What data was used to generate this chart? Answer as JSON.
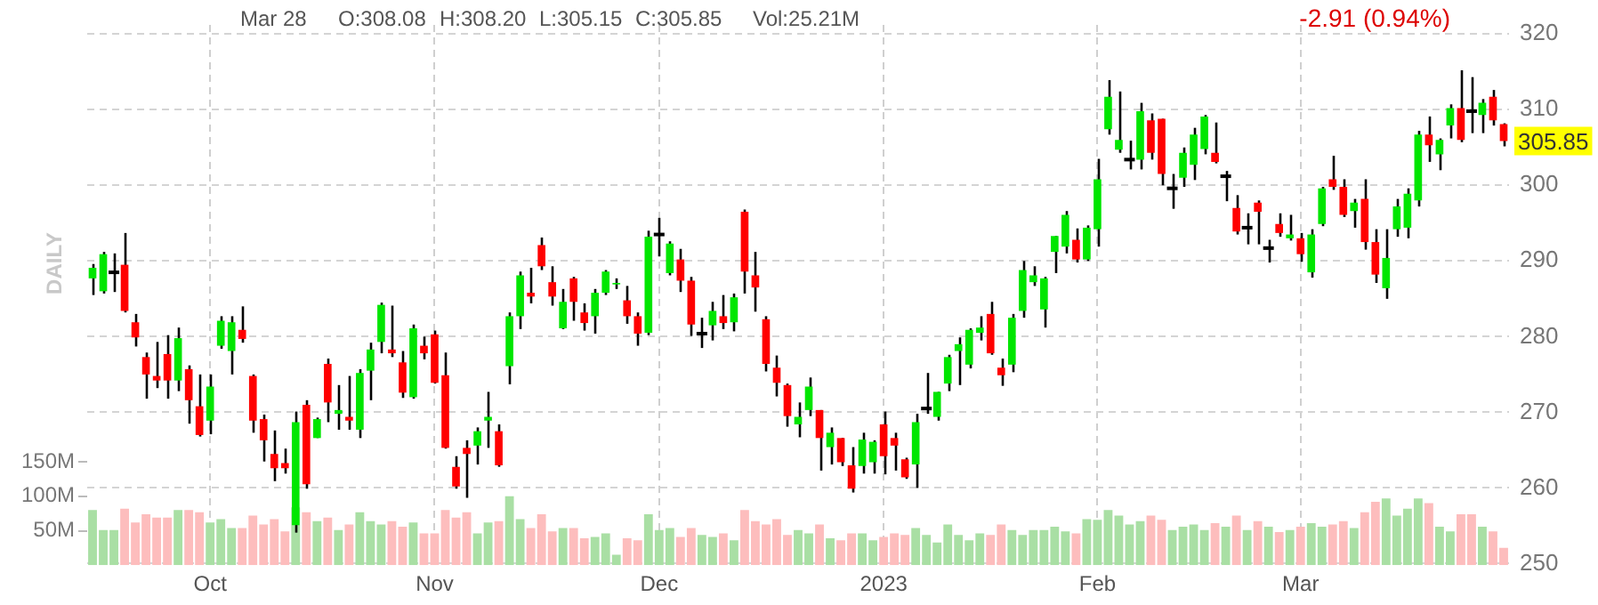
{
  "chart_data": {
    "type": "candlestick",
    "y2label": "DAILY",
    "annotations": [
      "Mar 28",
      "O:308.08",
      "H:308.20",
      "L:305.15",
      "C:305.85",
      "Vol:25.21M",
      "-2.91 (0.94%)",
      "305.85"
    ],
    "categories": [
      null,
      null,
      null,
      null,
      null,
      null,
      null,
      null,
      null,
      null,
      null,
      "Oct",
      null,
      null,
      null,
      null,
      null,
      null,
      null,
      null,
      null,
      null,
      null,
      null,
      null,
      null,
      null,
      null,
      null,
      null,
      null,
      null,
      "Nov",
      null,
      null,
      null,
      null,
      null,
      null,
      null,
      null,
      null,
      null,
      null,
      null,
      null,
      null,
      null,
      null,
      null,
      null,
      null,
      null,
      "Dec",
      null,
      null,
      null,
      null,
      null,
      null,
      null,
      null,
      null,
      null,
      null,
      null,
      null,
      null,
      null,
      null,
      null,
      null,
      null,
      null,
      "2023",
      null,
      null,
      null,
      null,
      null,
      null,
      null,
      null,
      null,
      null,
      null,
      null,
      null,
      null,
      null,
      null,
      null,
      null,
      null,
      "Feb",
      null,
      null,
      null,
      null,
      null,
      null,
      null,
      null,
      null,
      null,
      null,
      null,
      null,
      null,
      null,
      null,
      null,
      null,
      "Mar",
      null,
      null,
      null,
      null,
      null,
      null,
      null,
      null,
      null,
      null,
      null,
      null,
      null,
      null,
      null,
      null,
      null,
      null,
      null
    ],
    "ohlc": [
      [
        287.7,
        289.6,
        285.5,
        289.1
      ],
      [
        286.0,
        291.2,
        285.7,
        290.9
      ],
      [
        288.5,
        291.0,
        285.9,
        288.5
      ],
      [
        289.5,
        293.7,
        283.2,
        283.4
      ],
      [
        281.9,
        283.0,
        278.7,
        279.9
      ],
      [
        277.3,
        277.9,
        271.8,
        275.0
      ],
      [
        274.8,
        279.3,
        273.2,
        274.2
      ],
      [
        277.7,
        280.2,
        271.8,
        274.2
      ],
      [
        274.2,
        281.2,
        272.8,
        279.8
      ],
      [
        275.7,
        276.2,
        268.5,
        271.6
      ],
      [
        270.8,
        275.0,
        266.8,
        267.0
      ],
      [
        268.9,
        275.0,
        267.1,
        273.4
      ],
      [
        278.8,
        282.7,
        278.4,
        282.1
      ],
      [
        278.1,
        282.7,
        275.0,
        281.9
      ],
      [
        280.9,
        284.0,
        279.2,
        279.7
      ],
      [
        274.8,
        275.0,
        267.3,
        268.9
      ],
      [
        269.1,
        269.7,
        263.5,
        266.3
      ],
      [
        264.5,
        267.6,
        260.9,
        262.6
      ],
      [
        263.3,
        265.2,
        261.9,
        262.6
      ],
      [
        255.1,
        270.1,
        254.1,
        268.7
      ],
      [
        271.0,
        271.6,
        259.9,
        260.5
      ],
      [
        266.6,
        269.3,
        266.6,
        269.1
      ],
      [
        276.4,
        277.1,
        268.7,
        271.3
      ],
      [
        269.8,
        273.6,
        267.7,
        270.3
      ],
      [
        269.4,
        274.8,
        267.7,
        268.9
      ],
      [
        267.7,
        275.7,
        266.6,
        275.2
      ],
      [
        275.5,
        279.2,
        271.6,
        278.3
      ],
      [
        279.3,
        284.5,
        277.8,
        284.2
      ],
      [
        278.3,
        284.1,
        277.3,
        277.8
      ],
      [
        276.6,
        278.1,
        271.9,
        272.6
      ],
      [
        272.0,
        281.6,
        271.8,
        281.1
      ],
      [
        278.8,
        280.0,
        277.0,
        277.8
      ],
      [
        280.3,
        280.8,
        273.8,
        273.9
      ],
      [
        274.9,
        277.9,
        265.2,
        265.3
      ],
      [
        262.8,
        264.2,
        259.9,
        260.2
      ],
      [
        265.3,
        266.3,
        258.7,
        264.5
      ],
      [
        265.6,
        268.0,
        263.1,
        267.5
      ],
      [
        268.9,
        272.7,
        265.3,
        269.4
      ],
      [
        267.5,
        268.4,
        262.8,
        263.0
      ],
      [
        276.1,
        283.2,
        273.7,
        282.7
      ],
      [
        282.7,
        288.6,
        281.0,
        288.1
      ],
      [
        285.8,
        289.1,
        284.4,
        285.3
      ],
      [
        292.1,
        293.1,
        288.8,
        289.3
      ],
      [
        287.2,
        289.3,
        284.1,
        285.3
      ],
      [
        281.1,
        286.3,
        281.0,
        284.6
      ],
      [
        287.7,
        287.9,
        282.1,
        284.6
      ],
      [
        283.2,
        284.4,
        280.8,
        281.8
      ],
      [
        282.7,
        286.3,
        280.4,
        285.8
      ],
      [
        285.8,
        288.8,
        285.5,
        288.6
      ],
      [
        286.9,
        287.7,
        286.3,
        287.1
      ],
      [
        284.8,
        286.7,
        281.7,
        282.7
      ],
      [
        282.7,
        283.2,
        278.8,
        280.4
      ],
      [
        280.5,
        294.0,
        280.2,
        293.2
      ],
      [
        293.5,
        295.7,
        290.6,
        293.5
      ],
      [
        288.4,
        292.6,
        288.1,
        292.3
      ],
      [
        290.2,
        291.6,
        285.9,
        287.4
      ],
      [
        287.4,
        287.9,
        280.1,
        281.6
      ],
      [
        280.4,
        282.5,
        278.5,
        280.4
      ],
      [
        281.5,
        284.6,
        279.5,
        283.4
      ],
      [
        282.7,
        285.5,
        281.0,
        281.8
      ],
      [
        281.9,
        285.7,
        280.7,
        285.2
      ],
      [
        296.5,
        296.8,
        285.7,
        288.6
      ],
      [
        288.1,
        291.2,
        283.3,
        286.5
      ],
      [
        282.3,
        282.7,
        275.4,
        276.4
      ],
      [
        275.9,
        277.5,
        272.1,
        273.9
      ],
      [
        273.6,
        273.8,
        268.1,
        269.5
      ],
      [
        268.4,
        271.3,
        266.7,
        269.4
      ],
      [
        270.3,
        274.6,
        269.5,
        273.4
      ],
      [
        270.3,
        270.3,
        262.3,
        266.6
      ],
      [
        265.4,
        268.0,
        263.1,
        267.3
      ],
      [
        266.6,
        266.6,
        262.9,
        263.4
      ],
      [
        263.0,
        265.4,
        259.4,
        259.9
      ],
      [
        262.9,
        267.3,
        261.9,
        266.4
      ],
      [
        263.4,
        266.3,
        261.9,
        266.1
      ],
      [
        268.4,
        270.1,
        261.8,
        264.2
      ],
      [
        266.6,
        267.3,
        262.3,
        265.6
      ],
      [
        263.8,
        264.0,
        261.2,
        261.4
      ],
      [
        263.1,
        269.8,
        260.0,
        268.7
      ],
      [
        270.5,
        275.2,
        269.8,
        270.5
      ],
      [
        269.4,
        272.7,
        268.9,
        272.7
      ],
      [
        273.8,
        277.6,
        272.8,
        277.3
      ],
      [
        278.1,
        279.9,
        273.6,
        279.0
      ],
      [
        276.3,
        281.1,
        275.8,
        280.9
      ],
      [
        280.5,
        282.7,
        279.5,
        281.2
      ],
      [
        283.0,
        284.6,
        277.6,
        277.8
      ],
      [
        275.9,
        277.1,
        273.5,
        274.9
      ],
      [
        276.3,
        283.0,
        275.3,
        282.5
      ],
      [
        283.4,
        290.0,
        282.5,
        288.8
      ],
      [
        287.2,
        289.3,
        286.7,
        288.1
      ],
      [
        283.6,
        287.9,
        281.2,
        287.7
      ],
      [
        291.2,
        293.3,
        288.4,
        293.3
      ],
      [
        291.9,
        296.6,
        291.0,
        296.1
      ],
      [
        292.8,
        294.3,
        289.8,
        290.2
      ],
      [
        290.2,
        294.7,
        290.0,
        294.4
      ],
      [
        294.2,
        303.5,
        291.9,
        300.8
      ],
      [
        307.4,
        313.9,
        306.7,
        311.7
      ],
      [
        304.7,
        312.4,
        304.3,
        306.0
      ],
      [
        303.4,
        305.9,
        302.1,
        303.4
      ],
      [
        303.4,
        310.9,
        302.1,
        309.8
      ],
      [
        308.6,
        309.5,
        303.4,
        304.3
      ],
      [
        308.8,
        308.8,
        300.0,
        301.5
      ],
      [
        299.6,
        301.5,
        296.9,
        299.6
      ],
      [
        301.0,
        305.0,
        299.8,
        304.3
      ],
      [
        302.7,
        307.6,
        300.7,
        306.7
      ],
      [
        304.8,
        309.3,
        304.1,
        309.1
      ],
      [
        304.3,
        308.3,
        302.9,
        303.1
      ],
      [
        301.2,
        301.9,
        297.9,
        301.2
      ],
      [
        297.0,
        298.7,
        293.5,
        293.9
      ],
      [
        294.4,
        296.3,
        292.2,
        294.4
      ],
      [
        297.7,
        298.0,
        292.2,
        296.5
      ],
      [
        291.7,
        292.8,
        289.8,
        291.7
      ],
      [
        294.9,
        296.3,
        293.2,
        293.7
      ],
      [
        293.0,
        296.1,
        292.7,
        293.5
      ],
      [
        293.0,
        293.7,
        289.9,
        290.9
      ],
      [
        288.5,
        294.2,
        287.8,
        293.5
      ],
      [
        294.9,
        299.8,
        294.6,
        299.6
      ],
      [
        300.8,
        303.9,
        299.4,
        299.8
      ],
      [
        299.8,
        300.8,
        295.8,
        296.1
      ],
      [
        296.6,
        298.2,
        294.4,
        297.7
      ],
      [
        298.2,
        300.8,
        291.5,
        292.5
      ],
      [
        292.5,
        294.2,
        287.1,
        288.2
      ],
      [
        286.4,
        294.2,
        285.0,
        290.4
      ],
      [
        294.2,
        298.2,
        293.2,
        297.2
      ],
      [
        294.4,
        299.6,
        293.0,
        298.9
      ],
      [
        298.0,
        307.2,
        297.2,
        306.7
      ],
      [
        306.7,
        309.1,
        303.1,
        305.3
      ],
      [
        304.1,
        306.2,
        302.0,
        306.0
      ],
      [
        307.9,
        310.7,
        306.2,
        310.2
      ],
      [
        310.2,
        315.2,
        305.7,
        306.0
      ],
      [
        309.8,
        314.3,
        306.9,
        309.8
      ],
      [
        309.3,
        311.4,
        306.9,
        310.9
      ],
      [
        311.7,
        312.6,
        307.9,
        308.6
      ],
      [
        308.08,
        308.2,
        305.15,
        305.85
      ]
    ],
    "colors": [
      "#00e600",
      "#00e600",
      "#000000",
      "#ff0000",
      "#ff0000",
      "#ff0000",
      "#ff0000",
      "#ff0000",
      "#00e600",
      "#ff0000",
      "#ff0000",
      "#00e600",
      "#00e600",
      "#00e600",
      "#ff0000",
      "#ff0000",
      "#ff0000",
      "#ff0000",
      "#ff0000",
      "#00e600",
      "#ff0000",
      "#00e600",
      "#ff0000",
      "#00e600",
      "#ff0000",
      "#00e600",
      "#00e600",
      "#00e600",
      "#ff0000",
      "#ff0000",
      "#00e600",
      "#ff0000",
      "#ff0000",
      "#ff0000",
      "#ff0000",
      "#ff0000",
      "#00e600",
      "#00e600",
      "#ff0000",
      "#00e600",
      "#00e600",
      "#ff0000",
      "#ff0000",
      "#ff0000",
      "#00e600",
      "#ff0000",
      "#ff0000",
      "#00e600",
      "#00e600",
      "#00e600",
      "#ff0000",
      "#ff0000",
      "#00e600",
      "#000000",
      "#00e600",
      "#ff0000",
      "#ff0000",
      "#000000",
      "#00e600",
      "#ff0000",
      "#00e600",
      "#ff0000",
      "#ff0000",
      "#ff0000",
      "#ff0000",
      "#ff0000",
      "#00e600",
      "#00e600",
      "#ff0000",
      "#00e600",
      "#ff0000",
      "#ff0000",
      "#00e600",
      "#00e600",
      "#ff0000",
      "#ff0000",
      "#ff0000",
      "#00e600",
      "#000000",
      "#00e600",
      "#00e600",
      "#00e600",
      "#00e600",
      "#00e600",
      "#ff0000",
      "#ff0000",
      "#00e600",
      "#00e600",
      "#00e600",
      "#00e600",
      "#00e600",
      "#00e600",
      "#ff0000",
      "#00e600",
      "#00e600",
      "#00e600",
      "#00e600",
      "#000000",
      "#00e600",
      "#ff0000",
      "#ff0000",
      "#000000",
      "#00e600",
      "#00e600",
      "#00e600",
      "#ff0000",
      "#000000",
      "#ff0000",
      "#000000",
      "#ff0000",
      "#000000",
      "#ff0000",
      "#00e600",
      "#ff0000",
      "#00e600",
      "#00e600",
      "#ff0000",
      "#ff0000",
      "#00e600",
      "#ff0000",
      "#ff0000",
      "#00e600",
      "#00e600",
      "#00e600",
      "#00e600",
      "#ff0000",
      "#00e600",
      "#00e600",
      "#ff0000",
      "#000000",
      "#00e600",
      "#ff0000",
      "#ff0000"
    ],
    "ylim": [
      249.8,
      321.2
    ],
    "yticks": [
      250,
      260,
      270,
      280,
      290,
      300,
      310,
      320
    ],
    "y2lim": [
      0,
      785
    ],
    "y2ticks": [
      {
        "value": 50,
        "label": "50M"
      },
      {
        "value": 100,
        "label": "100M"
      },
      {
        "value": 150,
        "label": "150M"
      }
    ],
    "grid": true,
    "series": [
      {
        "type": "bar",
        "axis": "y2",
        "values": [
          80,
          51,
          51,
          82,
          62,
          74,
          69,
          69,
          80,
          80,
          77,
          62,
          67,
          54,
          54,
          72,
          59,
          67,
          49,
          84,
          77,
          64,
          69,
          51,
          59,
          77,
          64,
          59,
          64,
          56,
          62,
          46,
          46,
          80,
          69,
          77,
          46,
          62,
          64,
          100,
          67,
          54,
          74,
          49,
          54,
          54,
          39,
          41,
          46,
          15,
          39,
          36,
          74,
          51,
          54,
          41,
          54,
          44,
          41,
          46,
          36,
          80,
          64,
          59,
          67,
          44,
          51,
          46,
          59,
          39,
          36,
          46,
          46,
          36,
          41,
          46,
          44,
          54,
          44,
          33,
          59,
          44,
          36,
          46,
          44,
          59,
          51,
          44,
          51,
          51,
          56,
          49,
          46,
          67,
          66,
          80,
          72,
          59,
          64,
          72,
          66,
          51,
          56,
          59,
          51,
          61,
          56,
          72,
          51,
          64,
          56,
          48,
          51,
          56,
          61,
          56,
          59,
          64,
          54,
          77,
          92,
          97,
          72,
          82,
          97,
          90,
          56,
          49,
          74,
          74,
          56,
          49,
          25
        ],
        "colors": [
          "#a9dfa4",
          "#a9dfa4",
          "#a9dfa4",
          "#fdbdbd",
          "#fdbdbd",
          "#fdbdbd",
          "#fdbdbd",
          "#fdbdbd",
          "#a9dfa4",
          "#fdbdbd",
          "#fdbdbd",
          "#a9dfa4",
          "#a9dfa4",
          "#a9dfa4",
          "#fdbdbd",
          "#fdbdbd",
          "#fdbdbd",
          "#fdbdbd",
          "#fdbdbd",
          "#a9dfa4",
          "#fdbdbd",
          "#a9dfa4",
          "#fdbdbd",
          "#a9dfa4",
          "#fdbdbd",
          "#a9dfa4",
          "#a9dfa4",
          "#a9dfa4",
          "#fdbdbd",
          "#fdbdbd",
          "#a9dfa4",
          "#fdbdbd",
          "#fdbdbd",
          "#fdbdbd",
          "#fdbdbd",
          "#fdbdbd",
          "#a9dfa4",
          "#a9dfa4",
          "#fdbdbd",
          "#a9dfa4",
          "#a9dfa4",
          "#fdbdbd",
          "#fdbdbd",
          "#fdbdbd",
          "#a9dfa4",
          "#fdbdbd",
          "#fdbdbd",
          "#a9dfa4",
          "#a9dfa4",
          "#a9dfa4",
          "#fdbdbd",
          "#fdbdbd",
          "#a9dfa4",
          "#a9dfa4",
          "#a9dfa4",
          "#fdbdbd",
          "#fdbdbd",
          "#a9dfa4",
          "#a9dfa4",
          "#fdbdbd",
          "#a9dfa4",
          "#fdbdbd",
          "#fdbdbd",
          "#fdbdbd",
          "#fdbdbd",
          "#fdbdbd",
          "#a9dfa4",
          "#a9dfa4",
          "#fdbdbd",
          "#a9dfa4",
          "#fdbdbd",
          "#fdbdbd",
          "#a9dfa4",
          "#a9dfa4",
          "#fdbdbd",
          "#fdbdbd",
          "#fdbdbd",
          "#a9dfa4",
          "#a9dfa4",
          "#a9dfa4",
          "#a9dfa4",
          "#a9dfa4",
          "#a9dfa4",
          "#a9dfa4",
          "#fdbdbd",
          "#fdbdbd",
          "#a9dfa4",
          "#a9dfa4",
          "#a9dfa4",
          "#a9dfa4",
          "#a9dfa4",
          "#a9dfa4",
          "#fdbdbd",
          "#a9dfa4",
          "#a9dfa4",
          "#a9dfa4",
          "#a9dfa4",
          "#a9dfa4",
          "#a9dfa4",
          "#fdbdbd",
          "#fdbdbd",
          "#a9dfa4",
          "#a9dfa4",
          "#a9dfa4",
          "#a9dfa4",
          "#fdbdbd",
          "#a9dfa4",
          "#fdbdbd",
          "#a9dfa4",
          "#fdbdbd",
          "#a9dfa4",
          "#fdbdbd",
          "#a9dfa4",
          "#fdbdbd",
          "#a9dfa4",
          "#a9dfa4",
          "#fdbdbd",
          "#fdbdbd",
          "#a9dfa4",
          "#fdbdbd",
          "#fdbdbd",
          "#a9dfa4",
          "#a9dfa4",
          "#a9dfa4",
          "#a9dfa4",
          "#fdbdbd",
          "#a9dfa4",
          "#a9dfa4",
          "#fdbdbd",
          "#fdbdbd",
          "#a9dfa4",
          "#fdbdbd",
          "#fdbdbd"
        ]
      }
    ]
  }
}
